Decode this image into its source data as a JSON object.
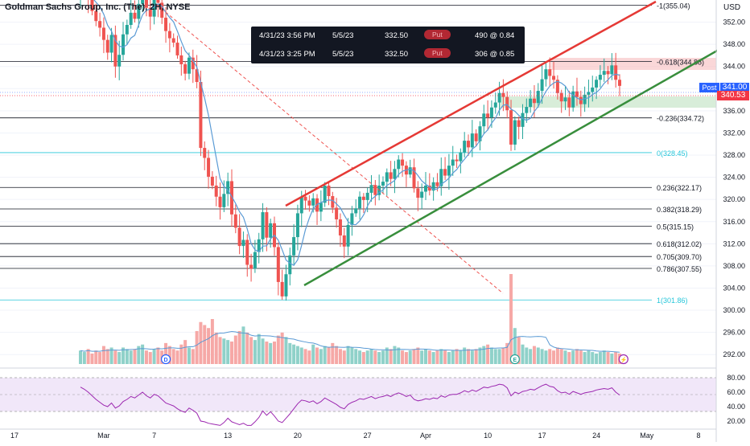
{
  "header": {
    "title": "Goldman Sachs Group, Inc. (The), 2H, NYSE"
  },
  "price_axis": {
    "currency_label": "USD",
    "ticks": [
      "352.00",
      "348.00",
      "344.00",
      "340.00",
      "336.00",
      "332.00",
      "328.00",
      "324.00",
      "320.00",
      "316.00",
      "312.00",
      "308.00",
      "304.00",
      "300.00",
      "296.00",
      "292.00"
    ]
  },
  "rsi_axis": {
    "ticks": [
      "80.00",
      "60.00",
      "40.00",
      "20.00"
    ]
  },
  "time_axis": {
    "ticks": [
      "17",
      "Mar",
      "7",
      "13",
      "20",
      "27",
      "Apr",
      "10",
      "17",
      "24",
      "May",
      "8"
    ]
  },
  "quote": {
    "post_label": "Post",
    "post_price": "341.00",
    "last_price": "340.53",
    "post_color": "#2962ff",
    "last_color": "#f23645"
  },
  "options_flow": {
    "rows": [
      {
        "time": "4/31/23 3:56 PM",
        "expiry": "5/5/23",
        "strike": "332.50",
        "side": "Put",
        "size": "490 @ 0.84"
      },
      {
        "time": "4/31/23 3:25 PM",
        "expiry": "5/5/23",
        "strike": "332.50",
        "side": "Put",
        "size": "306 @ 0.85"
      }
    ]
  },
  "fib_levels": [
    {
      "label": "-1(355.04)",
      "price": 355.04,
      "color": "#131722"
    },
    {
      "label": "-0.618(344.88)",
      "price": 344.88,
      "color": "#131722"
    },
    {
      "label": "-0.236(334.72)",
      "price": 334.72,
      "color": "#131722"
    },
    {
      "label": "0(328.45)",
      "price": 328.45,
      "color": "#26c6da"
    },
    {
      "label": "0.236(322.17)",
      "price": 322.17,
      "color": "#131722"
    },
    {
      "label": "0.382(318.29)",
      "price": 318.29,
      "color": "#131722"
    },
    {
      "label": "0.5(315.15)",
      "price": 315.15,
      "color": "#131722"
    },
    {
      "label": "0.618(312.02)",
      "price": 312.02,
      "color": "#131722"
    },
    {
      "label": "0.705(309.70)",
      "price": 309.7,
      "color": "#131722"
    },
    {
      "label": "0.786(307.55)",
      "price": 307.55,
      "color": "#131722"
    },
    {
      "label": "1(301.86)",
      "price": 301.86,
      "color": "#26c6da"
    }
  ],
  "event_markers": [
    {
      "label": "D",
      "x_index": 22
    },
    {
      "label": "E",
      "x_index": 112
    },
    {
      "label": "⚡",
      "x_index": 140
    }
  ],
  "chart_data": {
    "type": "candlestick",
    "title": "Goldman Sachs Group, Inc. (The), 2H, NYSE",
    "ylim": [
      290,
      356
    ],
    "rsi_ylim": [
      10,
      90
    ],
    "colors": {
      "up": "#26a69a",
      "down": "#ef5350",
      "ma": "#5b9bd5",
      "rsi": "#9c27b0",
      "channel_upper": "#e53935",
      "channel_lower": "#388e3c",
      "downtrend": "#ef5350"
    },
    "close": [
      357.2,
      358.5,
      356.1,
      354.0,
      352.2,
      351.0,
      348.8,
      346.5,
      349.7,
      344.0,
      346.1,
      349.8,
      351.5,
      353.7,
      352.6,
      355.3,
      357.1,
      354.6,
      353.0,
      356.2,
      355.5,
      352.8,
      350.4,
      349.1,
      348.3,
      346.0,
      344.4,
      342.7,
      345.6,
      343.5,
      341.2,
      329.3,
      327.5,
      324.1,
      322.5,
      320.5,
      318.6,
      321.0,
      323.3,
      317.3,
      314.9,
      311.6,
      312.7,
      308.2,
      307.5,
      310.5,
      312.8,
      317.7,
      313.1,
      315.7,
      311.4,
      305.1,
      302.5,
      306.5,
      309.9,
      313.2,
      317.5,
      320.5,
      319.8,
      318.9,
      320.2,
      317.8,
      319.4,
      322.5,
      320.6,
      318.5,
      316.4,
      313.5,
      311.5,
      315.4,
      317.5,
      318.4,
      320.5,
      319.9,
      321.2,
      322.6,
      320.8,
      322.5,
      323.2,
      324.9,
      323.7,
      325.5,
      327.2,
      326.1,
      324.5,
      325.8,
      322.0,
      320.3,
      321.4,
      322.5,
      321.6,
      323.1,
      322.4,
      325.5,
      324.3,
      326.1,
      327.2,
      326.9,
      328.5,
      330.6,
      329.4,
      331.9,
      330.5,
      333.2,
      335.5,
      334.8,
      336.6,
      337.5,
      339.2,
      338.5,
      336.1,
      329.9,
      334.3,
      333.1,
      335.6,
      336.7,
      338.2,
      337.4,
      339.6,
      341.7,
      343.5,
      342.3,
      341.6,
      339.2,
      337.7,
      338.4,
      336.6,
      339.5,
      338.5,
      337.2,
      338.9,
      339.4,
      340.2,
      341.6,
      342.5,
      343.2,
      342.6,
      344.2,
      341.6,
      340.5
    ],
    "volume": [
      9,
      8,
      10,
      7,
      9,
      8,
      12,
      10,
      11,
      9,
      8,
      11,
      10,
      9,
      10,
      12,
      13,
      9,
      8,
      10,
      11,
      9,
      14,
      12,
      10,
      9,
      13,
      16,
      11,
      10,
      22,
      28,
      26,
      24,
      30,
      21,
      18,
      17,
      16,
      15,
      19,
      22,
      25,
      21,
      18,
      16,
      20,
      17,
      15,
      14,
      15,
      19,
      21,
      18,
      14,
      13,
      12,
      11,
      10,
      9,
      13,
      11,
      10,
      12,
      11,
      14,
      12,
      10,
      9,
      12,
      11,
      10,
      9,
      8,
      9,
      10,
      9,
      8,
      9,
      11,
      10,
      12,
      11,
      9,
      8,
      9,
      10,
      11,
      9,
      10,
      9,
      8,
      9,
      10,
      9,
      8,
      9,
      10,
      9,
      11,
      10,
      9,
      10,
      11,
      12,
      13,
      11,
      10,
      10,
      11,
      14,
      60,
      24,
      18,
      13,
      11,
      10,
      12,
      11,
      10,
      9,
      10,
      9,
      11,
      10,
      9,
      8,
      9,
      10,
      9,
      8,
      9,
      8,
      7,
      8,
      9,
      8,
      7,
      8,
      7
    ],
    "rsi": [
      67,
      64,
      60,
      55,
      50,
      46,
      42,
      40,
      45,
      38,
      41,
      47,
      50,
      54,
      52,
      56,
      60,
      55,
      52,
      57,
      55,
      50,
      45,
      43,
      41,
      37,
      34,
      32,
      38,
      35,
      31,
      20,
      19,
      17,
      16,
      15,
      14,
      18,
      24,
      19,
      17,
      15,
      17,
      14,
      14,
      19,
      25,
      34,
      28,
      33,
      27,
      20,
      18,
      24,
      30,
      37,
      44,
      49,
      48,
      46,
      48,
      44,
      47,
      52,
      49,
      46,
      43,
      39,
      37,
      43,
      46,
      48,
      51,
      50,
      52,
      54,
      51,
      53,
      54,
      56,
      54,
      57,
      59,
      57,
      54,
      56,
      50,
      48,
      49,
      51,
      50,
      52,
      51,
      55,
      53,
      56,
      57,
      57,
      59,
      62,
      60,
      63,
      61,
      64,
      67,
      66,
      68,
      69,
      71,
      70,
      66,
      55,
      60,
      58,
      61,
      62,
      64,
      63,
      66,
      69,
      71,
      68,
      67,
      62,
      59,
      60,
      57,
      61,
      59,
      57,
      59,
      60,
      61,
      63,
      64,
      65,
      64,
      66,
      60,
      56
    ]
  }
}
